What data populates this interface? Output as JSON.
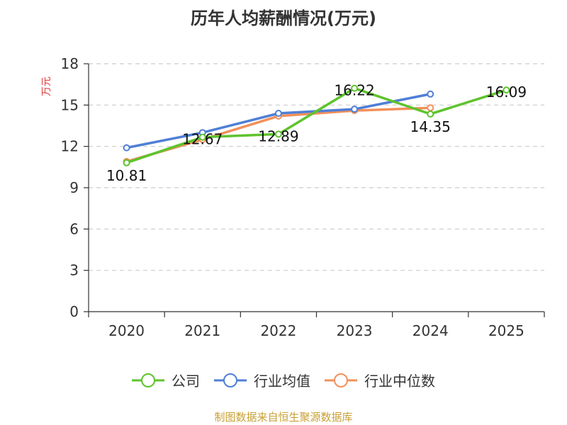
{
  "chart_data": {
    "type": "line",
    "title": "历年人均薪酬情况(万元)",
    "ylabel": "万元",
    "xlabel": "",
    "categories": [
      "2020",
      "2021",
      "2022",
      "2023",
      "2024",
      "2025"
    ],
    "ylim": [
      0,
      18
    ],
    "yticks": [
      0,
      3,
      6,
      9,
      12,
      15,
      18
    ],
    "grid": true,
    "legend_position": "bottom",
    "series": [
      {
        "name": "公司",
        "color": "#5ec32d",
        "values": [
          10.81,
          12.67,
          12.89,
          16.22,
          14.35,
          16.09
        ],
        "labels": [
          "10.81",
          "12.67",
          "12.89",
          "16.22",
          "14.35",
          "16.09"
        ]
      },
      {
        "name": "行业均值",
        "color": "#4f7fd6",
        "values": [
          11.9,
          13.0,
          14.4,
          14.7,
          15.8,
          null
        ]
      },
      {
        "name": "行业中位数",
        "color": "#f2905b",
        "values": [
          10.9,
          12.5,
          14.2,
          14.6,
          14.8,
          null
        ]
      }
    ]
  },
  "source_note": "制图数据来自恒生聚源数据库",
  "colors": {
    "ylabel": "#e03c3c",
    "source_note": "#c8a033",
    "grid": "#cccccc",
    "axis": "#333333"
  }
}
